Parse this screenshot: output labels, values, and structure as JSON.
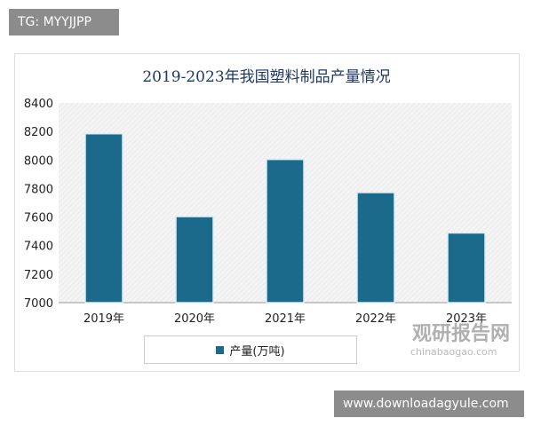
{
  "overlay": {
    "top_left": "TG: MYYJJPP",
    "bottom_right": "www.downloadagyule.com"
  },
  "watermark": {
    "cn": "观研报告网",
    "en": "chinabaogao.com"
  },
  "chart_data": {
    "type": "bar",
    "title": "2019-2023年我国塑料制品产量情况",
    "categories": [
      "2019年",
      "2020年",
      "2021年",
      "2022年",
      "2023年"
    ],
    "series": [
      {
        "name": "产量(万吨)",
        "values": [
          8184,
          7603.2,
          8004,
          7771.6,
          7488.5
        ],
        "color": "#1b6a8c"
      }
    ],
    "ylim": [
      7000,
      8400
    ],
    "yticks": [
      7000,
      7200,
      7400,
      7600,
      7800,
      8000,
      8200,
      8400
    ],
    "grid": false,
    "legend": "bottom"
  }
}
